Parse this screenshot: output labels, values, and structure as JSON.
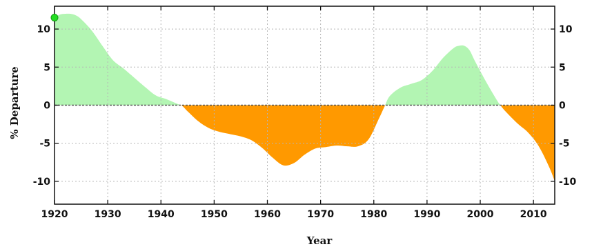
{
  "chart_data": {
    "type": "area",
    "title": "",
    "xlabel": "Year",
    "ylabel": "% Departure",
    "xlim": [
      1920,
      2014
    ],
    "ylim": [
      -13,
      13
    ],
    "x_ticks": [
      1920,
      1930,
      1940,
      1950,
      1960,
      1970,
      1980,
      1990,
      2000,
      2010
    ],
    "y_ticks": [
      10,
      5,
      0,
      -5,
      -10
    ],
    "grid": true,
    "grid_style": "dotted",
    "colors": {
      "positive": "#b3f5b3",
      "negative": "#ff9900",
      "zero_line": "#555555",
      "marker": "#22dd22"
    },
    "marker_point": {
      "x": 1920,
      "y": 11.5
    },
    "series": [
      {
        "x": [
          1920,
          1921,
          1922,
          1923,
          1924,
          1925,
          1927,
          1929,
          1931,
          1933,
          1935,
          1937,
          1939,
          1941,
          1943,
          1944,
          1945,
          1947,
          1949,
          1951,
          1953,
          1955,
          1957,
          1959,
          1961,
          1963,
          1965,
          1967,
          1969,
          1971,
          1973,
          1975,
          1977,
          1979,
          1981,
          1982,
          1983,
          1985,
          1987,
          1989,
          1991,
          1993,
          1995,
          1996,
          1997,
          1998,
          1999,
          2001,
          2003,
          2004,
          2005,
          2007,
          2009,
          2011,
          2013,
          2014
        ],
        "values": [
          11.5,
          11.9,
          12.0,
          12.0,
          11.8,
          11.3,
          9.8,
          7.8,
          5.9,
          4.8,
          3.6,
          2.4,
          1.3,
          0.8,
          0.2,
          -0.1,
          -0.8,
          -2.1,
          -3.0,
          -3.5,
          -3.8,
          -4.1,
          -4.6,
          -5.6,
          -6.9,
          -7.9,
          -7.6,
          -6.5,
          -5.7,
          -5.5,
          -5.3,
          -5.4,
          -5.4,
          -4.5,
          -1.7,
          -0.2,
          1.2,
          2.3,
          2.8,
          3.3,
          4.5,
          6.2,
          7.5,
          7.8,
          7.8,
          7.2,
          5.8,
          3.2,
          0.8,
          -0.2,
          -1.0,
          -2.4,
          -3.6,
          -5.4,
          -8.2,
          -10.0
        ]
      }
    ]
  }
}
